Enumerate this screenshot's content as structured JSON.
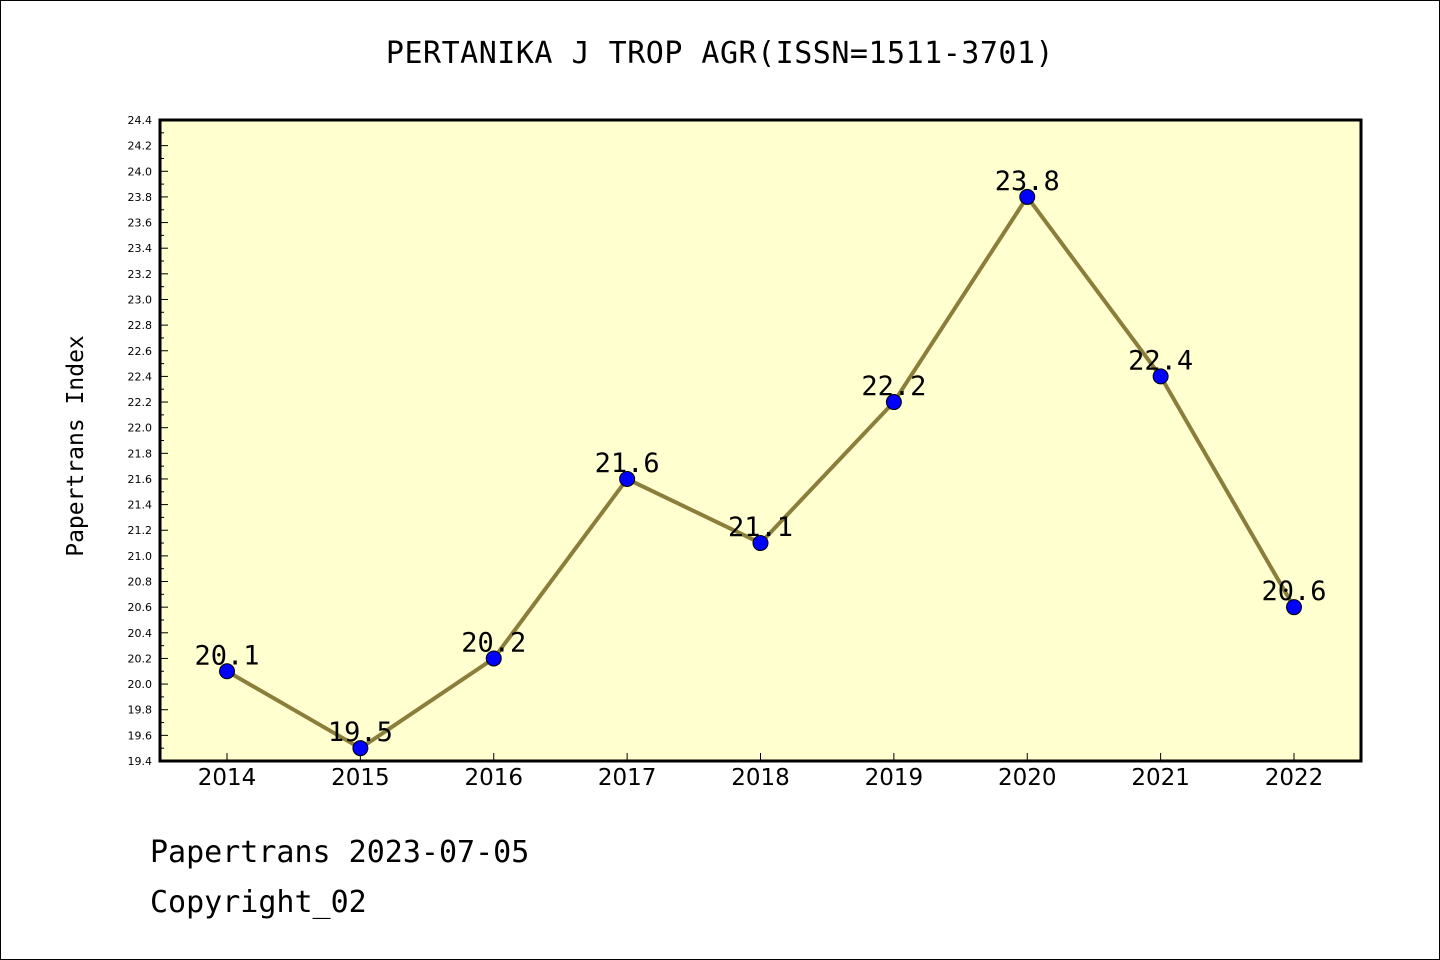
{
  "chart_data": {
    "type": "line",
    "title": "PERTANIKA J TROP AGR(ISSN=1511-3701)",
    "xlabel": "",
    "ylabel": "Papertrans Index",
    "categories": [
      "2014",
      "2015",
      "2016",
      "2017",
      "2018",
      "2019",
      "2020",
      "2021",
      "2022"
    ],
    "series": [
      {
        "values": [
          20.1,
          19.5,
          20.2,
          21.6,
          21.1,
          22.2,
          23.8,
          22.4,
          20.6
        ],
        "data_labels": [
          "20.1",
          "19.5",
          "20.2",
          "21.6",
          "21.1",
          "22.2",
          "23.8",
          "22.4",
          "20.6"
        ]
      }
    ],
    "ylim": [
      19.4,
      24.4
    ],
    "yticks": [
      "19.4",
      "19.6",
      "19.8",
      "20.0",
      "20.2",
      "20.4",
      "20.6",
      "20.8",
      "21.0",
      "21.2",
      "21.4",
      "21.6",
      "21.8",
      "22.0",
      "22.2",
      "22.4",
      "22.6",
      "22.8",
      "23.0",
      "23.2",
      "23.4",
      "23.6",
      "23.8",
      "24.0",
      "24.2",
      "24.4"
    ],
    "grid": false,
    "colors": {
      "plot_background": "#ffffd0",
      "line": "#8b7d3a",
      "marker": "#0000ff"
    }
  },
  "footer": {
    "line1": "Papertrans 2023-07-05",
    "line2": "Copyright_02"
  }
}
